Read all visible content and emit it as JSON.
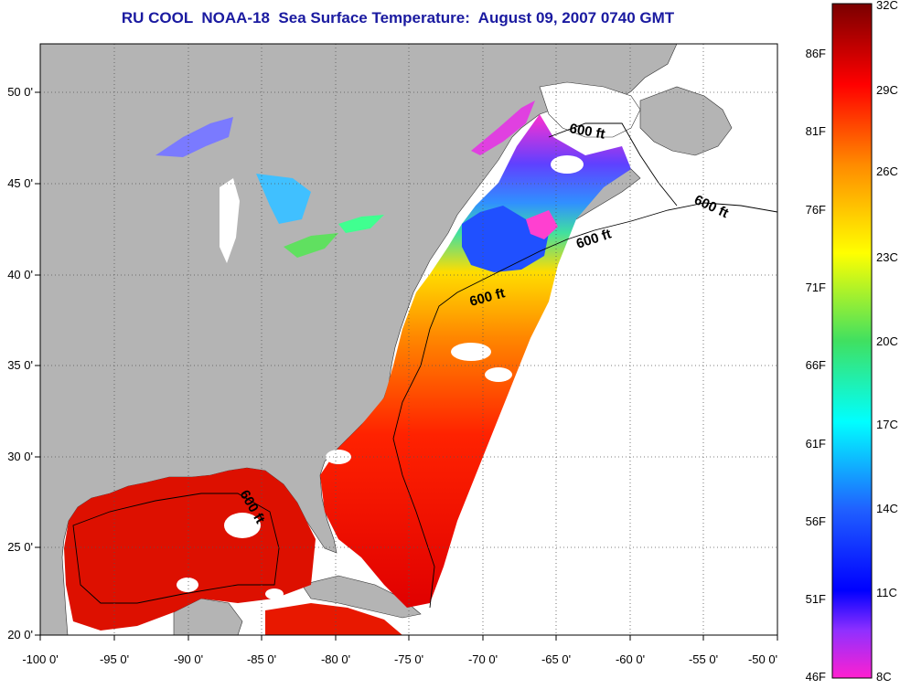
{
  "title": "RU COOL  NOAA-18  Sea Surface Temperature:  August 09, 2007 0740 GMT",
  "map": {
    "lon_range": [
      -100,
      -50
    ],
    "lat_range": [
      20,
      52.5
    ],
    "x_ticks": [
      "-100 0'",
      "-95 0'",
      "-90 0'",
      "-85 0'",
      "-80 0'",
      "-75 0'",
      "-70 0'",
      "-65 0'",
      "-60 0'",
      "-55 0'",
      "-50 0'"
    ],
    "y_ticks": [
      "50 0'",
      "45 0'",
      "40 0'",
      "35 0'",
      "30 0'",
      "25 0'",
      "20 0'"
    ],
    "land_color": "#b4b4b4",
    "no_data_color": "#ffffff",
    "contour_label": "600 ft"
  },
  "colorbar": {
    "celsius_labels": [
      "32C",
      "29C",
      "26C",
      "23C",
      "20C",
      "17C",
      "14C",
      "11C",
      "8C"
    ],
    "fahrenheit_labels": [
      "86F",
      "81F",
      "76F",
      "71F",
      "66F",
      "61F",
      "56F",
      "51F",
      "46F"
    ],
    "stops": [
      "#7a0000",
      "#ff0000",
      "#ff8c00",
      "#ffff00",
      "#40e060",
      "#00ffff",
      "#2060ff",
      "#0000ff",
      "#9030ff",
      "#ff20d0"
    ]
  }
}
